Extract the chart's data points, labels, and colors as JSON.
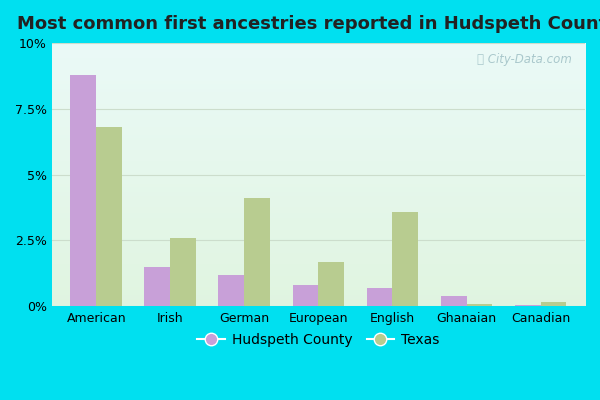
{
  "title": "Most common first ancestries reported in Hudspeth County",
  "categories": [
    "American",
    "Irish",
    "German",
    "European",
    "English",
    "Ghanaian",
    "Canadian"
  ],
  "hudspeth_values": [
    8.8,
    1.5,
    1.2,
    0.8,
    0.7,
    0.4,
    0.05
  ],
  "texas_values": [
    6.8,
    2.6,
    4.1,
    1.7,
    3.6,
    0.1,
    0.15
  ],
  "hudspeth_color": "#c8a0d8",
  "texas_color": "#b8cc90",
  "outer_bg": "#00e0f0",
  "ylim": [
    0,
    10
  ],
  "yticks": [
    0,
    2.5,
    5.0,
    7.5,
    10.0
  ],
  "ytick_labels": [
    "0%",
    "2.5%",
    "5%",
    "7.5%",
    "10%"
  ],
  "legend_labels": [
    "Hudspeth County",
    "Texas"
  ],
  "bar_width": 0.35,
  "title_fontsize": 13,
  "tick_fontsize": 9,
  "legend_fontsize": 10,
  "grid_color": "#ccddcc",
  "watermark_text": "City-Data.com",
  "watermark_color": "#aac8cc"
}
